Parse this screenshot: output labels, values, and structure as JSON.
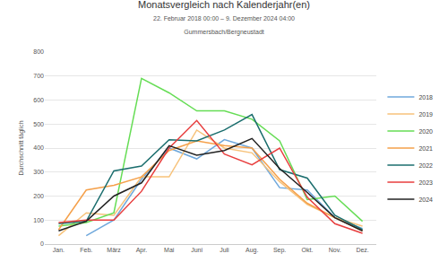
{
  "chart_data": {
    "type": "line",
    "title": "Monatsvergleich nach Kalenderjahr(en)",
    "subtitle": "22. Februar 2018 00:00 – 9. Dezember 2024 04:00",
    "annotations": [
      "Gummersbach/Bergneustadt"
    ],
    "y_label": "Durchschnitt täglich",
    "categories": [
      "Jan.",
      "Feb.",
      "März",
      "Apr.",
      "Mai",
      "Juni",
      "Juli",
      "Aug.",
      "Sep.",
      "Okt.",
      "Nov.",
      "Dez."
    ],
    "series": [
      {
        "name": "2018",
        "color": "#6fa8dc",
        "values": [
          null,
          35,
          100,
          270,
          400,
          355,
          435,
          400,
          235,
          225,
          110,
          65
        ]
      },
      {
        "name": "2019",
        "color": "#f7c27a",
        "values": [
          35,
          130,
          120,
          280,
          280,
          475,
          400,
          380,
          260,
          165,
          110,
          75
        ]
      },
      {
        "name": "2020",
        "color": "#66dd55",
        "values": [
          75,
          90,
          130,
          690,
          630,
          555,
          555,
          520,
          430,
          185,
          200,
          95
        ]
      },
      {
        "name": "2021",
        "color": "#f5a04a",
        "values": [
          60,
          225,
          245,
          280,
          390,
          430,
          410,
          400,
          270,
          170,
          110,
          55
        ]
      },
      {
        "name": "2022",
        "color": "#1b6e6e",
        "values": [
          85,
          95,
          305,
          325,
          435,
          430,
          475,
          540,
          310,
          275,
          120,
          60
        ]
      },
      {
        "name": "2023",
        "color": "#e83e3e",
        "values": [
          90,
          100,
          100,
          220,
          400,
          515,
          375,
          330,
          400,
          195,
          85,
          45
        ]
      },
      {
        "name": "2024",
        "color": "#222222",
        "values": [
          55,
          95,
          200,
          255,
          410,
          370,
          390,
          440,
          315,
          215,
          110,
          55
        ]
      }
    ],
    "ylim": [
      0,
      800
    ],
    "yticks": [
      0,
      100,
      200,
      300,
      400,
      500,
      600,
      700,
      800
    ],
    "grid": true,
    "legend": "right"
  }
}
